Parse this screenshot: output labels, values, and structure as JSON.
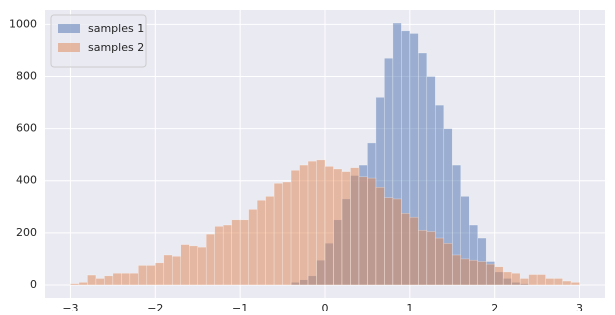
{
  "chart_data": {
    "type": "histogram",
    "bins": [
      -3.0,
      -2.9,
      -2.8,
      -2.7,
      -2.6,
      -2.5,
      -2.4,
      -2.3,
      -2.2,
      -2.1,
      -2.0,
      -1.9,
      -1.8,
      -1.7,
      -1.6,
      -1.5,
      -1.4,
      -1.3,
      -1.2,
      -1.1,
      -1.0,
      -0.9,
      -0.8,
      -0.7,
      -0.6,
      -0.5,
      -0.4,
      -0.3,
      -0.2,
      -0.1,
      0.0,
      0.1,
      0.2,
      0.3,
      0.4,
      0.5,
      0.6,
      0.7,
      0.8,
      0.9,
      1.0,
      1.1,
      1.2,
      1.3,
      1.4,
      1.5,
      1.6,
      1.7,
      1.8,
      1.9,
      2.0,
      2.1,
      2.2,
      2.3,
      2.4,
      2.5,
      2.6,
      2.7,
      2.8,
      2.9,
      3.0
    ],
    "series": [
      {
        "name": "samples 1",
        "color": "#4c72b0",
        "values": [
          0,
          0,
          0,
          0,
          0,
          0,
          0,
          0,
          0,
          0,
          0,
          0,
          0,
          0,
          0,
          0,
          0,
          0,
          0,
          0,
          0,
          0,
          0,
          0,
          0,
          0,
          10,
          20,
          35,
          95,
          160,
          250,
          330,
          420,
          460,
          545,
          720,
          870,
          1005,
          975,
          965,
          890,
          800,
          690,
          600,
          460,
          340,
          230,
          180,
          90,
          50,
          25,
          10,
          5,
          0,
          0,
          0,
          0,
          0,
          0
        ]
      },
      {
        "name": "samples 2",
        "color": "#dd8452",
        "values": [
          5,
          10,
          38,
          25,
          35,
          45,
          45,
          45,
          75,
          75,
          85,
          115,
          110,
          155,
          150,
          145,
          195,
          225,
          230,
          250,
          250,
          290,
          325,
          340,
          390,
          395,
          440,
          460,
          475,
          480,
          455,
          445,
          435,
          450,
          415,
          410,
          375,
          335,
          330,
          275,
          260,
          210,
          205,
          180,
          160,
          115,
          100,
          95,
          90,
          80,
          70,
          50,
          45,
          25,
          40,
          40,
          25,
          25,
          15,
          10
        ]
      }
    ],
    "xlim": [
      -3.3,
      3.3
    ],
    "ylim": [
      -50,
      1055
    ],
    "xticks": [
      {
        "value": -3,
        "label": "−3"
      },
      {
        "value": -2,
        "label": "−2"
      },
      {
        "value": -1,
        "label": "−1"
      },
      0,
      1,
      2,
      3
    ],
    "yticks": [
      0,
      200,
      400,
      600,
      800,
      1000
    ],
    "grid": true,
    "legend": "upper left"
  }
}
